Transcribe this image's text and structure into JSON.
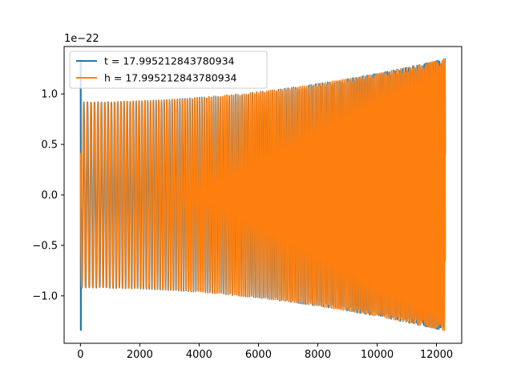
{
  "chart_data": {
    "type": "line",
    "title": "",
    "xlabel": "",
    "ylabel": "",
    "y_offset_label": "1e−22",
    "xlim": [
      -550,
      12850
    ],
    "ylim": [
      -1.47,
      1.47
    ],
    "x_ticks": [
      0,
      2000,
      4000,
      6000,
      8000,
      10000,
      12000
    ],
    "x_tick_labels": [
      "0",
      "2000",
      "4000",
      "6000",
      "8000",
      "10000",
      "12000"
    ],
    "y_ticks": [
      1.0,
      0.5,
      0.0,
      -0.5,
      -1.0
    ],
    "y_tick_labels": [
      "1.0",
      "0.5",
      "0.0",
      "−0.5",
      "−1.0"
    ],
    "grid": false,
    "legend_position": "upper-left",
    "x_range": [
      0,
      12300
    ],
    "series": [
      {
        "name": "t = 17.995212843780934",
        "color": "#1f77b4",
        "description": "oscillation with initial spike at x≈0",
        "initial_spike_amplitude": 1.34,
        "envelope_x": [
          0,
          12300
        ],
        "envelope_amplitude": [
          0.92,
          1.35
        ]
      },
      {
        "name": "h = 17.995212843780934",
        "color": "#ff7f0e",
        "envelope_x": [
          0,
          12300
        ],
        "envelope_amplitude": [
          0.92,
          1.35
        ]
      }
    ]
  }
}
